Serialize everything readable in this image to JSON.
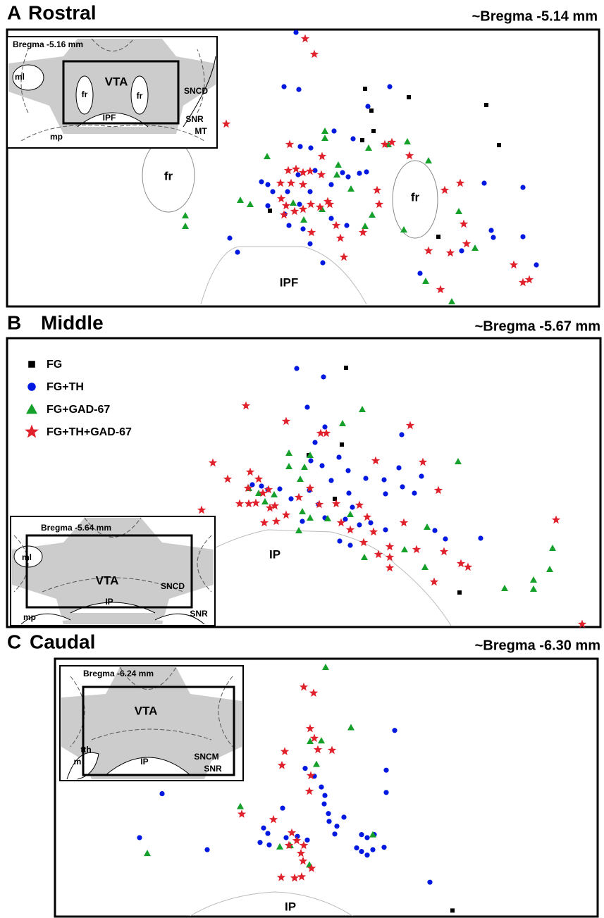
{
  "panels": [
    {
      "letter": "A",
      "title": "Rostral",
      "bregma": "~Bregma -5.14 mm",
      "inset": {
        "bregma": "Bregma -5.16 mm",
        "labels": [
          "ml",
          "VTA",
          "fr",
          "fr",
          "IPF",
          "SNCD",
          "SNR",
          "MT",
          "mp"
        ]
      },
      "labels": [
        "fr",
        "fr",
        "IPF"
      ]
    },
    {
      "letter": "B",
      "title": "Middle",
      "bregma": "~Bregma -5.67 mm",
      "inset": {
        "bregma": "Bregma -5.64 mm",
        "labels": [
          "ml",
          "VTA",
          "IP",
          "SNCD",
          "SNR",
          "mp"
        ]
      },
      "labels": [
        "IP"
      ]
    },
    {
      "letter": "C",
      "title": "Caudal",
      "bregma": "~Bregma -6.30 mm",
      "inset": {
        "bregma": "Bregma -6.24 mm",
        "labels": [
          "VTA",
          "tth",
          "m",
          "IP",
          "SNCM",
          "SNR"
        ]
      },
      "labels": [
        "IP"
      ]
    }
  ],
  "legend": [
    "FG",
    "FG+TH",
    "FG+GAD-67",
    "FG+TH+GAD-67"
  ]
}
